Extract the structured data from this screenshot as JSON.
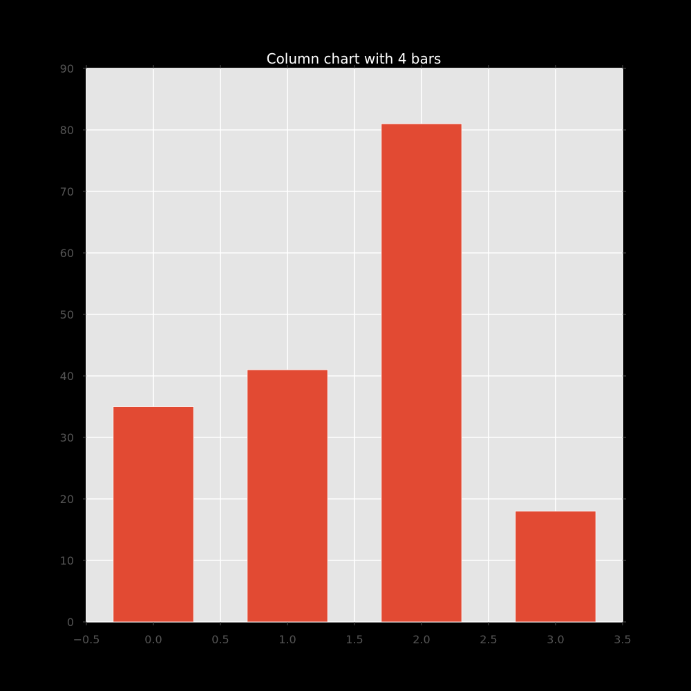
{
  "chart_data": {
    "type": "bar",
    "title": "Column chart with 4 bars",
    "xlabel": "",
    "ylabel": "",
    "x": [
      0,
      1,
      2,
      3
    ],
    "values": [
      35,
      41,
      81,
      18
    ],
    "bar_width": 0.6,
    "xlim": [
      -0.5,
      3.5
    ],
    "ylim": [
      0,
      90
    ],
    "xticks": [
      -0.5,
      0.0,
      0.5,
      1.0,
      1.5,
      2.0,
      2.5,
      3.0,
      3.5
    ],
    "xtick_labels": [
      "−0.5",
      "0.0",
      "0.5",
      "1.0",
      "1.5",
      "2.0",
      "2.5",
      "3.0",
      "3.5"
    ],
    "yticks": [
      0,
      10,
      20,
      30,
      40,
      50,
      60,
      70,
      80,
      90
    ],
    "ytick_labels": [
      "0",
      "10",
      "20",
      "30",
      "40",
      "50",
      "60",
      "70",
      "80",
      "90"
    ],
    "grid": true,
    "legend": "none",
    "colors": {
      "figure_background": "#000000",
      "axes_background": "#e5e5e5",
      "grid": "#ffffff",
      "bar": "#e24a33",
      "tick_label": "#555555",
      "title": "#ffffff"
    }
  }
}
